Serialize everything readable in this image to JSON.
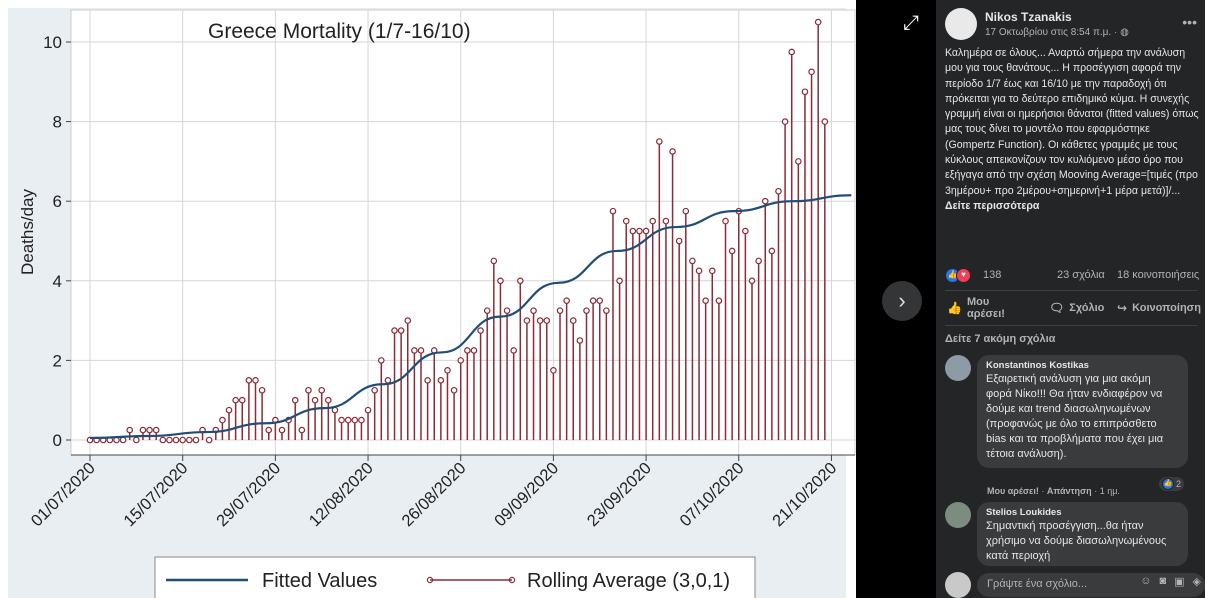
{
  "viewer": {
    "next_icon": "chevron-right-icon",
    "expand_icon": "expand-icon"
  },
  "chart_data": {
    "type": "line",
    "title": "Greece Mortality (1/7-16/10)",
    "ylabel": "Deaths/day",
    "xlabel": "",
    "ylim": [
      0,
      10.8
    ],
    "yticks": [
      "0",
      "2",
      "4",
      "6",
      "8",
      "10"
    ],
    "xticks": [
      "01/07/2020",
      "15/07/2020",
      "29/07/2020",
      "12/08/2020",
      "26/08/2020",
      "09/09/2020",
      "23/09/2020",
      "07/10/2020",
      "21/10/2020"
    ],
    "grid": true,
    "legend_position": "bottom",
    "series": [
      {
        "name": "Fitted Values",
        "kind": "line",
        "color": "#1f4e79",
        "x_start": "01/07/2020",
        "x_end": "24/10/2020",
        "values": [
          0.05,
          0.1,
          0.2,
          0.42,
          0.8,
          1.4,
          2.2,
          3.1,
          3.95,
          4.75,
          5.35,
          5.75,
          6.0,
          6.15
        ]
      },
      {
        "name": "Rolling Average (3,0,1)",
        "kind": "stem",
        "color": "#8b2c36",
        "x_start": "01/07/2020",
        "values": [
          0,
          0,
          0,
          0,
          0,
          0,
          0.25,
          0,
          0.25,
          0.25,
          0.25,
          0,
          0,
          0,
          0,
          0,
          0,
          0.25,
          0,
          0.25,
          0.5,
          0.75,
          1,
          1,
          1.5,
          1.5,
          1.25,
          0.25,
          0.5,
          0.25,
          0.5,
          1,
          0.25,
          1.25,
          1,
          1.25,
          1,
          0.75,
          0.5,
          0.5,
          0.5,
          0.5,
          0.75,
          1.25,
          2,
          1.5,
          2.75,
          2.75,
          3,
          2.25,
          2.25,
          1.5,
          2.25,
          1.5,
          1.75,
          1.25,
          2,
          2.25,
          2.25,
          2.75,
          3.25,
          4.5,
          4,
          3.25,
          2.25,
          4,
          3,
          3.25,
          3,
          3,
          1.75,
          3.25,
          3.5,
          3,
          2.5,
          3.25,
          3.5,
          3.5,
          3.25,
          5.75,
          4,
          5.5,
          5.25,
          5.25,
          5.25,
          5.5,
          7.5,
          5.5,
          7.25,
          5,
          5.75,
          4.5,
          4.25,
          3.5,
          4.25,
          3.5,
          5.5,
          4.75,
          5.75,
          5.25,
          4,
          4.5,
          6,
          4.75,
          6.25,
          8,
          9.75,
          7,
          8.75,
          9.25,
          10.5,
          8
        ]
      }
    ]
  },
  "post": {
    "author": "Nikos Tzanakis",
    "time": "17 Οκτωβρίου στις 8:54 π.μ. · ",
    "privacy_icon": "globe-icon",
    "more_icon": "more-options-icon",
    "text": "Καλημέρα σε όλους... Αναρτώ σήμερα την ανάλυση μου για τους θανάτους... Η προσέγγιση αφορά την περίοδο 1/7 έως και 16/10 με την παραδοχή ότι πρόκειται για το δεύτερο επιδημικό κύμα. Η συνεχής γραμμή είναι οι ημερήσιοι θάνατοι (fitted values) όπως μας τους δίνει το μοντέλο που εφαρμόστηκε (Gompertz Function). Οι κάθετες γραμμές με τους κύκλους απεικονίζουν τον κυλιόμενο μέσο όρο που εξήγαγα από την σχέση Mooving Average=[τιμές (προ 3ημέρου+ προ 2μέρου+σημερινή+1 μέρα μετά)]/...",
    "see_more": "Δείτε περισσότερα"
  },
  "stats": {
    "reaction_count": "138",
    "comments": "23 σχόλια",
    "shares": "18 κοινοποιήσεις"
  },
  "actions": {
    "like": "Μου αρέσει!",
    "comment": "Σχόλιο",
    "share": "Κοινοποίηση"
  },
  "more_comments": "Δείτε 7 ακόμη σχόλια",
  "comments": [
    {
      "name": "Konstantinos Kostikas",
      "text": "Εξαιρετική ανάλυση για μια ακόμη φορά Νίκο!!! Θα ήταν ενδιαφέρον να δούμε και trend διασωληνωμένων (προφανώς με όλο το επιπρόσθετο bias και τα προβλήματα που έχει μια τέτοια ανάλυση).",
      "like": "Μου αρέσει!",
      "reply": "Απάντηση",
      "age": "1 ημ.",
      "likes": "2"
    },
    {
      "name": "Stelios Loukides",
      "text": "Σημαντική προσέγγιση...θα ήταν χρήσιμο να δούμε διασωληνωμένους κατά περιοχή"
    }
  ],
  "composer": {
    "placeholder": "Γράψτε ένα σχόλιο...",
    "icons": [
      "emoji-icon",
      "camera-icon",
      "gif-icon",
      "sticker-icon"
    ]
  }
}
